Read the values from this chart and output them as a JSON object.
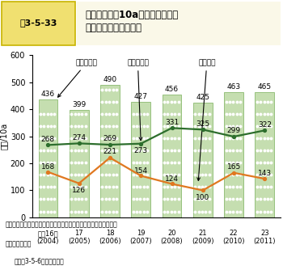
{
  "years": [
    0,
    1,
    2,
    3,
    4,
    5,
    6,
    7
  ],
  "x_labels_line1": [
    "平成16年",
    "17",
    "18",
    "19",
    "20",
    "21",
    "22",
    "23"
  ],
  "x_labels_line2": [
    "(2004)",
    "(2005)",
    "(2006)",
    "(2007)",
    "(2008)",
    "(2009)",
    "(2010)",
    "(2011)"
  ],
  "gross_revenue": [
    436,
    399,
    490,
    427,
    456,
    425,
    463,
    465
  ],
  "management_cost": [
    268,
    274,
    269,
    273,
    331,
    325,
    299,
    322
  ],
  "farm_income": [
    168,
    126,
    221,
    154,
    124,
    100,
    165,
    143
  ],
  "bar_color": "#c5deb0",
  "bar_edge_color": "#8aba70",
  "management_line_color": "#2d6e2d",
  "income_line_color": "#e07820",
  "ylim": [
    0,
    600
  ],
  "yticks": [
    0,
    100,
    200,
    300,
    400,
    500,
    600
  ],
  "ylabel": "千円/10a",
  "title_box_label": "図3-5-33",
  "title_text": "みかん部門の10a当たり農業粗収\n益及び農業所得の推移",
  "legend_gross": "農業粗収益",
  "legend_mgmt": "農業経営費",
  "legend_income": "農業所得",
  "annotation_text1": "資料：農林水産省「農業経営統計調査　営農類型別経営統計（個別",
  "annotation_text2": "　　　経営）」",
  "annotation_text3": "注：図3-5-6の注釈参照。",
  "header_bg": "#f0e070",
  "header_border": "#c8b400",
  "fig_bg": "#ffffff"
}
